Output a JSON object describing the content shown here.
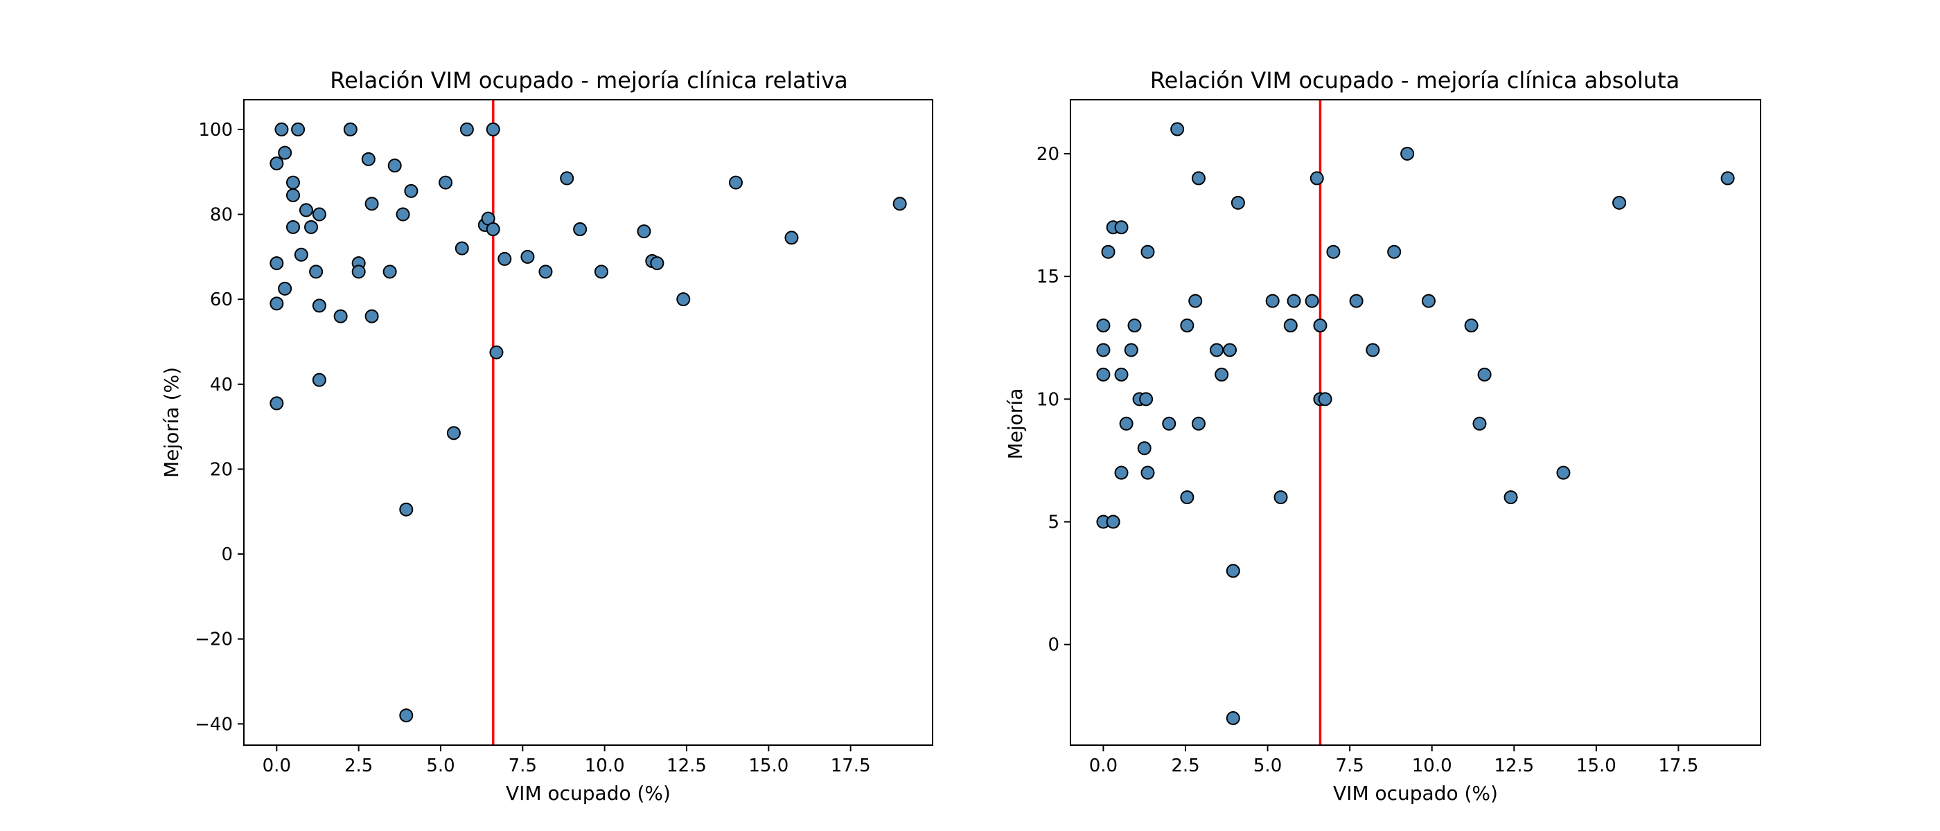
{
  "chart_data": [
    {
      "type": "scatter",
      "title": "Relación VIM ocupado - mejoría clínica relativa",
      "xlabel": "VIM ocupado (%)",
      "ylabel": "Mejoría (%)",
      "xlim": [
        -1.0,
        20.0
      ],
      "ylim": [
        -45,
        107
      ],
      "x_ticks": [
        0.0,
        2.5,
        5.0,
        7.5,
        10.0,
        12.5,
        15.0,
        17.5
      ],
      "x_tick_labels": [
        "0.0",
        "2.5",
        "5.0",
        "7.5",
        "10.0",
        "12.5",
        "15.0",
        "17.5"
      ],
      "y_ticks": [
        -40,
        -20,
        0,
        20,
        40,
        60,
        80,
        100
      ],
      "y_tick_labels": [
        "−40",
        "−20",
        "0",
        "20",
        "40",
        "60",
        "80",
        "100"
      ],
      "vline": {
        "x": 6.6,
        "color": "#ff0000"
      },
      "marker_color": "#4d87b5",
      "marker_edge": "#000000",
      "points": [
        {
          "x": 0.0,
          "y": 92
        },
        {
          "x": 0.15,
          "y": 100
        },
        {
          "x": 0.25,
          "y": 94.5
        },
        {
          "x": 0.5,
          "y": 87.5
        },
        {
          "x": 0.5,
          "y": 84.5
        },
        {
          "x": 0.65,
          "y": 100
        },
        {
          "x": 0.5,
          "y": 77
        },
        {
          "x": 0.9,
          "y": 81
        },
        {
          "x": 1.3,
          "y": 80
        },
        {
          "x": 1.05,
          "y": 77
        },
        {
          "x": 0.75,
          "y": 70.5
        },
        {
          "x": 0.0,
          "y": 68.5
        },
        {
          "x": 1.2,
          "y": 66.5
        },
        {
          "x": 0.25,
          "y": 62.5
        },
        {
          "x": 0.0,
          "y": 59
        },
        {
          "x": 1.3,
          "y": 58.5
        },
        {
          "x": 1.95,
          "y": 56
        },
        {
          "x": 1.3,
          "y": 41
        },
        {
          "x": 0.0,
          "y": 35.5
        },
        {
          "x": 2.25,
          "y": 100
        },
        {
          "x": 2.8,
          "y": 93
        },
        {
          "x": 2.9,
          "y": 82.5
        },
        {
          "x": 2.5,
          "y": 68.5
        },
        {
          "x": 2.5,
          "y": 66.5
        },
        {
          "x": 2.9,
          "y": 56
        },
        {
          "x": 3.6,
          "y": 91.5
        },
        {
          "x": 4.1,
          "y": 85.5
        },
        {
          "x": 3.85,
          "y": 80
        },
        {
          "x": 3.45,
          "y": 66.5
        },
        {
          "x": 3.95,
          "y": 10.5
        },
        {
          "x": 3.95,
          "y": -38
        },
        {
          "x": 5.8,
          "y": 100
        },
        {
          "x": 5.15,
          "y": 87.5
        },
        {
          "x": 5.65,
          "y": 72
        },
        {
          "x": 5.4,
          "y": 28.5
        },
        {
          "x": 6.6,
          "y": 100
        },
        {
          "x": 6.35,
          "y": 77.5
        },
        {
          "x": 6.45,
          "y": 79
        },
        {
          "x": 6.6,
          "y": 76.5
        },
        {
          "x": 6.7,
          "y": 47.5
        },
        {
          "x": 6.95,
          "y": 69.5
        },
        {
          "x": 7.65,
          "y": 70
        },
        {
          "x": 8.2,
          "y": 66.5
        },
        {
          "x": 8.85,
          "y": 88.5
        },
        {
          "x": 9.25,
          "y": 76.5
        },
        {
          "x": 9.9,
          "y": 66.5
        },
        {
          "x": 11.2,
          "y": 76
        },
        {
          "x": 11.45,
          "y": 69
        },
        {
          "x": 11.6,
          "y": 68.5
        },
        {
          "x": 12.4,
          "y": 60
        },
        {
          "x": 14.0,
          "y": 87.5
        },
        {
          "x": 15.7,
          "y": 74.5
        },
        {
          "x": 19.0,
          "y": 82.5
        }
      ]
    },
    {
      "type": "scatter",
      "title": "Relación VIM ocupado - mejoría clínica absoluta",
      "xlabel": "VIM ocupado (%)",
      "ylabel": "Mejoría",
      "xlim": [
        -1.0,
        20.0
      ],
      "ylim": [
        -4.1,
        22.2
      ],
      "x_ticks": [
        0.0,
        2.5,
        5.0,
        7.5,
        10.0,
        12.5,
        15.0,
        17.5
      ],
      "x_tick_labels": [
        "0.0",
        "2.5",
        "5.0",
        "7.5",
        "10.0",
        "12.5",
        "15.0",
        "17.5"
      ],
      "y_ticks": [
        0,
        5,
        10,
        15,
        20
      ],
      "y_tick_labels": [
        "0",
        "5",
        "10",
        "15",
        "20"
      ],
      "vline": {
        "x": 6.6,
        "color": "#ff0000"
      },
      "marker_color": "#4d87b5",
      "marker_edge": "#000000",
      "points": [
        {
          "x": 0.0,
          "y": 13
        },
        {
          "x": 0.0,
          "y": 12
        },
        {
          "x": 0.0,
          "y": 11
        },
        {
          "x": 0.0,
          "y": 5
        },
        {
          "x": 0.3,
          "y": 5
        },
        {
          "x": 0.15,
          "y": 16
        },
        {
          "x": 0.3,
          "y": 17
        },
        {
          "x": 0.55,
          "y": 17
        },
        {
          "x": 0.55,
          "y": 11
        },
        {
          "x": 0.55,
          "y": 7
        },
        {
          "x": 0.7,
          "y": 9
        },
        {
          "x": 0.85,
          "y": 12
        },
        {
          "x": 0.95,
          "y": 13
        },
        {
          "x": 1.1,
          "y": 10
        },
        {
          "x": 1.3,
          "y": 10
        },
        {
          "x": 1.25,
          "y": 8
        },
        {
          "x": 1.35,
          "y": 7
        },
        {
          "x": 1.35,
          "y": 16
        },
        {
          "x": 2.0,
          "y": 9
        },
        {
          "x": 2.25,
          "y": 21
        },
        {
          "x": 2.55,
          "y": 13
        },
        {
          "x": 2.55,
          "y": 6
        },
        {
          "x": 2.8,
          "y": 14
        },
        {
          "x": 2.9,
          "y": 19
        },
        {
          "x": 2.9,
          "y": 9
        },
        {
          "x": 3.45,
          "y": 12
        },
        {
          "x": 3.6,
          "y": 11
        },
        {
          "x": 3.85,
          "y": 12
        },
        {
          "x": 3.95,
          "y": 3
        },
        {
          "x": 3.95,
          "y": -3
        },
        {
          "x": 4.1,
          "y": 18
        },
        {
          "x": 5.15,
          "y": 14
        },
        {
          "x": 5.4,
          "y": 6
        },
        {
          "x": 5.7,
          "y": 13
        },
        {
          "x": 5.8,
          "y": 14
        },
        {
          "x": 6.35,
          "y": 14
        },
        {
          "x": 6.5,
          "y": 19
        },
        {
          "x": 6.6,
          "y": 13
        },
        {
          "x": 6.6,
          "y": 10
        },
        {
          "x": 6.75,
          "y": 10
        },
        {
          "x": 7.0,
          "y": 16
        },
        {
          "x": 7.7,
          "y": 14
        },
        {
          "x": 8.2,
          "y": 12
        },
        {
          "x": 8.85,
          "y": 16
        },
        {
          "x": 9.25,
          "y": 20
        },
        {
          "x": 9.9,
          "y": 14
        },
        {
          "x": 11.2,
          "y": 13
        },
        {
          "x": 11.45,
          "y": 9
        },
        {
          "x": 11.6,
          "y": 11
        },
        {
          "x": 12.4,
          "y": 6
        },
        {
          "x": 14.0,
          "y": 7
        },
        {
          "x": 15.7,
          "y": 18
        },
        {
          "x": 19.0,
          "y": 19
        }
      ]
    }
  ]
}
